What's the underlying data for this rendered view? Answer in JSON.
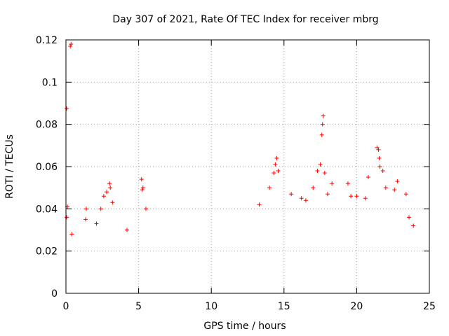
{
  "chart_data": {
    "type": "scatter",
    "title": "Day 307 of 2021, Rate Of TEC Index for receiver mbrg",
    "xlabel": "GPS time / hours",
    "ylabel": "ROTI / TECUs",
    "xlim": [
      0,
      25
    ],
    "ylim": [
      0,
      0.12
    ],
    "xticks": [
      "0",
      "5",
      "10",
      "15",
      "20",
      "25"
    ],
    "yticks": [
      "0",
      "0.02",
      "0.04",
      "0.06",
      "0.08",
      "0.1",
      "0.12"
    ],
    "grid": true,
    "marker": "+",
    "color": "#ff0000",
    "series": [
      {
        "values": [
          [
            0.05,
            0.0875
          ],
          [
            0.05,
            0.036
          ],
          [
            0.1,
            0.041
          ],
          [
            0.3,
            0.117
          ],
          [
            0.35,
            0.118
          ],
          [
            0.4,
            0.028
          ],
          [
            1.4,
            0.04
          ],
          [
            1.35,
            0.035
          ],
          [
            2.1,
            0.033
          ],
          [
            2.4,
            0.04
          ],
          [
            2.6,
            0.046
          ],
          [
            2.8,
            0.048
          ],
          [
            3.0,
            0.052
          ],
          [
            3.05,
            0.05
          ],
          [
            3.2,
            0.043
          ],
          [
            4.2,
            0.03
          ],
          [
            5.2,
            0.054
          ],
          [
            5.25,
            0.049
          ],
          [
            5.3,
            0.05
          ],
          [
            5.5,
            0.04
          ],
          [
            13.3,
            0.042
          ],
          [
            14.0,
            0.05
          ],
          [
            14.3,
            0.057
          ],
          [
            14.4,
            0.061
          ],
          [
            14.5,
            0.064
          ],
          [
            14.6,
            0.058
          ],
          [
            15.5,
            0.047
          ],
          [
            16.2,
            0.045
          ],
          [
            16.5,
            0.044
          ],
          [
            17.0,
            0.05
          ],
          [
            17.3,
            0.058
          ],
          [
            17.5,
            0.061
          ],
          [
            17.6,
            0.075
          ],
          [
            17.65,
            0.08
          ],
          [
            17.7,
            0.084
          ],
          [
            17.8,
            0.057
          ],
          [
            18.0,
            0.047
          ],
          [
            18.3,
            0.052
          ],
          [
            19.4,
            0.052
          ],
          [
            19.6,
            0.046
          ],
          [
            20.0,
            0.046
          ],
          [
            20.6,
            0.045
          ],
          [
            20.8,
            0.055
          ],
          [
            21.4,
            0.069
          ],
          [
            21.5,
            0.068
          ],
          [
            21.55,
            0.064
          ],
          [
            21.6,
            0.06
          ],
          [
            21.8,
            0.058
          ],
          [
            22.0,
            0.05
          ],
          [
            22.6,
            0.049
          ],
          [
            22.8,
            0.053
          ],
          [
            23.4,
            0.047
          ],
          [
            23.6,
            0.036
          ],
          [
            23.9,
            0.032
          ]
        ]
      }
    ]
  }
}
